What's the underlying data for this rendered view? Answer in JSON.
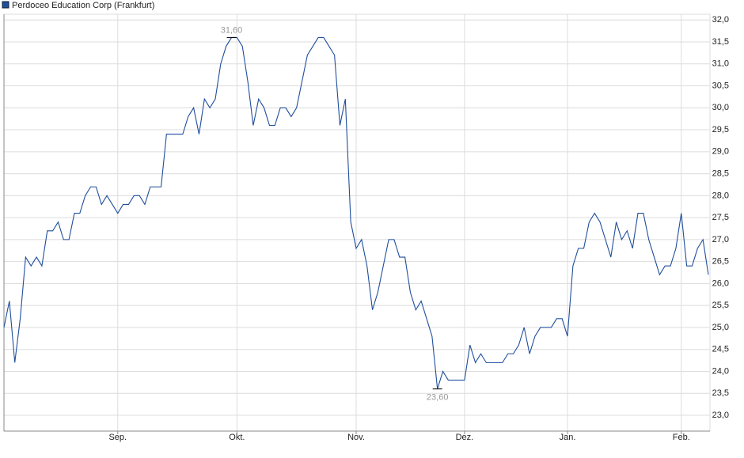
{
  "chart_data": {
    "type": "line",
    "categories": [
      null,
      null,
      null,
      null,
      null,
      null,
      null,
      null,
      null,
      null,
      null,
      null,
      null,
      null,
      null,
      null,
      null,
      null,
      null,
      null,
      null,
      "Sep.",
      null,
      null,
      null,
      null,
      null,
      null,
      null,
      null,
      null,
      null,
      null,
      null,
      null,
      null,
      null,
      null,
      null,
      null,
      null,
      null,
      null,
      "Okt.",
      null,
      null,
      null,
      null,
      null,
      null,
      null,
      null,
      null,
      null,
      null,
      null,
      null,
      null,
      null,
      null,
      null,
      null,
      null,
      null,
      null,
      "Nov.",
      null,
      null,
      null,
      null,
      null,
      null,
      null,
      null,
      null,
      null,
      null,
      null,
      null,
      null,
      null,
      null,
      null,
      null,
      null,
      "Dez.",
      null,
      null,
      null,
      null,
      null,
      null,
      null,
      null,
      null,
      null,
      null,
      null,
      null,
      null,
      null,
      null,
      null,
      null,
      "Jan.",
      null,
      null,
      null,
      null,
      null,
      null,
      null,
      null,
      null,
      null,
      null,
      null,
      null,
      null,
      null,
      null,
      null,
      null,
      null,
      null,
      "Feb.",
      null,
      null,
      null,
      null,
      null
    ],
    "series": [
      {
        "name": "Perdoceo Education Corp (Frankfurt)",
        "color": "#1f4e9c",
        "values": [
          25.0,
          25.6,
          24.2,
          25.2,
          26.6,
          26.4,
          26.6,
          26.4,
          27.2,
          27.2,
          27.4,
          27.0,
          27.0,
          27.6,
          27.6,
          28.0,
          28.2,
          28.2,
          27.8,
          28.0,
          27.8,
          27.6,
          27.8,
          27.8,
          28.0,
          28.0,
          27.8,
          28.2,
          28.2,
          28.2,
          29.4,
          29.4,
          29.4,
          29.4,
          29.8,
          30.0,
          29.4,
          30.2,
          30.0,
          30.2,
          31.0,
          31.4,
          31.6,
          31.6,
          31.4,
          30.6,
          29.6,
          30.2,
          30.0,
          29.6,
          29.6,
          30.0,
          30.0,
          29.8,
          30.0,
          30.6,
          31.2,
          31.4,
          31.6,
          31.6,
          31.4,
          31.2,
          29.6,
          30.2,
          27.4,
          26.8,
          27.0,
          26.4,
          25.4,
          25.8,
          26.4,
          27.0,
          27.0,
          26.6,
          26.6,
          25.8,
          25.4,
          25.6,
          25.2,
          24.8,
          23.6,
          24.0,
          23.8,
          23.8,
          23.8,
          23.8,
          24.6,
          24.2,
          24.4,
          24.2,
          24.2,
          24.2,
          24.2,
          24.4,
          24.4,
          24.6,
          25.0,
          24.4,
          24.8,
          25.0,
          25.0,
          25.0,
          25.2,
          25.2,
          24.8,
          26.4,
          26.8,
          26.8,
          27.4,
          27.6,
          27.4,
          27.0,
          26.6,
          27.4,
          27.0,
          27.2,
          26.8,
          27.6,
          27.6,
          27.0,
          26.6,
          26.2,
          26.4,
          26.4,
          26.8,
          27.6,
          26.4,
          26.4,
          26.8,
          27.0,
          26.2
        ]
      }
    ],
    "annotations": [
      {
        "text": "31,60",
        "value": 31.6,
        "position": "above"
      },
      {
        "text": "23,60",
        "value": 23.6,
        "position": "below"
      }
    ],
    "ylim": [
      22.64,
      32.13
    ],
    "yticks": [
      {
        "value": 23,
        "label": "23,0"
      },
      {
        "value": 23.5,
        "label": "23,5"
      },
      {
        "value": 24,
        "label": "24,0"
      },
      {
        "value": 24.5,
        "label": "24,5"
      },
      {
        "value": 25,
        "label": "25,0"
      },
      {
        "value": 25.5,
        "label": "25,5"
      },
      {
        "value": 26,
        "label": "26,0"
      },
      {
        "value": 26.5,
        "label": "26,5"
      },
      {
        "value": 27,
        "label": "27,0"
      },
      {
        "value": 27.5,
        "label": "27,5"
      },
      {
        "value": 28,
        "label": "28,0"
      },
      {
        "value": 28.5,
        "label": "28,5"
      },
      {
        "value": 29,
        "label": "29,0"
      },
      {
        "value": 29.5,
        "label": "29,5"
      },
      {
        "value": 30,
        "label": "30,0"
      },
      {
        "value": 30.5,
        "label": "30,5"
      },
      {
        "value": 31,
        "label": "31,0"
      },
      {
        "value": 31.5,
        "label": "31,5"
      },
      {
        "value": 32,
        "label": "32,0"
      }
    ],
    "grid": true,
    "legend": "top-left"
  }
}
